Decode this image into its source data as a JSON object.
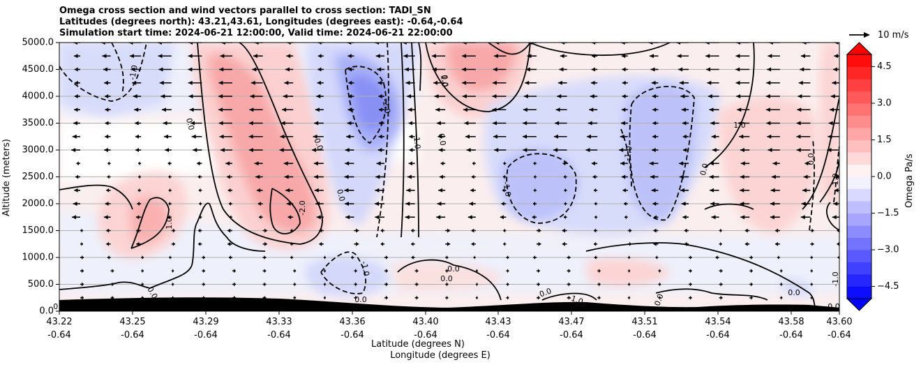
{
  "title_lines": [
    "Omega cross section and wind vectors parallel to cross section: TADI_SN",
    "Latitudes (degrees north): 43.21,43.61, Longitudes (degrees east): -0.64,-0.64",
    "Simulation start time: 2024-06-21 12:00:00, Valid time: 2024-06-21 22:00:00"
  ],
  "chart_data": {
    "type": "heatmap",
    "subtype": "filled contour with contour lines and wind vectors",
    "title": "Omega cross section and wind vectors parallel to cross section: TADI_SN",
    "ylabel": "Altitude (meters)",
    "xlabel_line1": "Latitude (degrees N)",
    "xlabel_line2": "Longitude (degrees E)",
    "ylim": [
      0,
      5000
    ],
    "xlim": [
      43.22,
      43.6
    ],
    "y_ticks": [
      "0.0",
      "500.0",
      "1000.0",
      "1500.0",
      "2000.0",
      "2500.0",
      "3000.0",
      "3500.0",
      "4000.0",
      "4500.0",
      "5000.0"
    ],
    "x_ticks": [
      {
        "lat": "43.22",
        "lon": "-0.64"
      },
      {
        "lat": "43.25",
        "lon": "-0.64"
      },
      {
        "lat": "43.29",
        "lon": "-0.64"
      },
      {
        "lat": "43.33",
        "lon": "-0.64"
      },
      {
        "lat": "43.36",
        "lon": "-0.64"
      },
      {
        "lat": "43.40",
        "lon": "-0.64"
      },
      {
        "lat": "43.43",
        "lon": "-0.64"
      },
      {
        "lat": "43.47",
        "lon": "-0.64"
      },
      {
        "lat": "43.51",
        "lon": "-0.64"
      },
      {
        "lat": "43.54",
        "lon": "-0.64"
      },
      {
        "lat": "43.58",
        "lon": "-0.64"
      },
      {
        "lat": "43.60",
        "lon": "-0.64"
      }
    ],
    "grid": "horizontal",
    "colorbar": {
      "label": "Omega Pa/s",
      "range": [
        -5.0,
        5.0
      ],
      "tick_labels": [
        "4.5",
        "3.0",
        "1.5",
        "0.0",
        "−1.5",
        "−3.0",
        "−4.5"
      ],
      "extend": "both",
      "colors": {
        "negative": "#0000ff",
        "positive": "#ff0000",
        "neutral": "#ffffff"
      }
    },
    "contour_labels": [
      "-1.0",
      "0.0",
      "0.0",
      "0.0",
      "-2.0",
      "-1.0",
      "0.0",
      "0.0",
      "1.0",
      "-2.0",
      "1.0",
      "0.0",
      "-1.0",
      "-1.0",
      "0.0",
      "0.0",
      "0.0",
      "-1.0",
      "0.0",
      "0.0",
      "0.0",
      "1.0",
      "-1.0",
      "0.0",
      "0.0",
      "0.0",
      "0.0",
      "-1.0",
      "1.0"
    ],
    "reference_vector": {
      "label": "10 m/s"
    },
    "terrain_color": "#000000"
  }
}
